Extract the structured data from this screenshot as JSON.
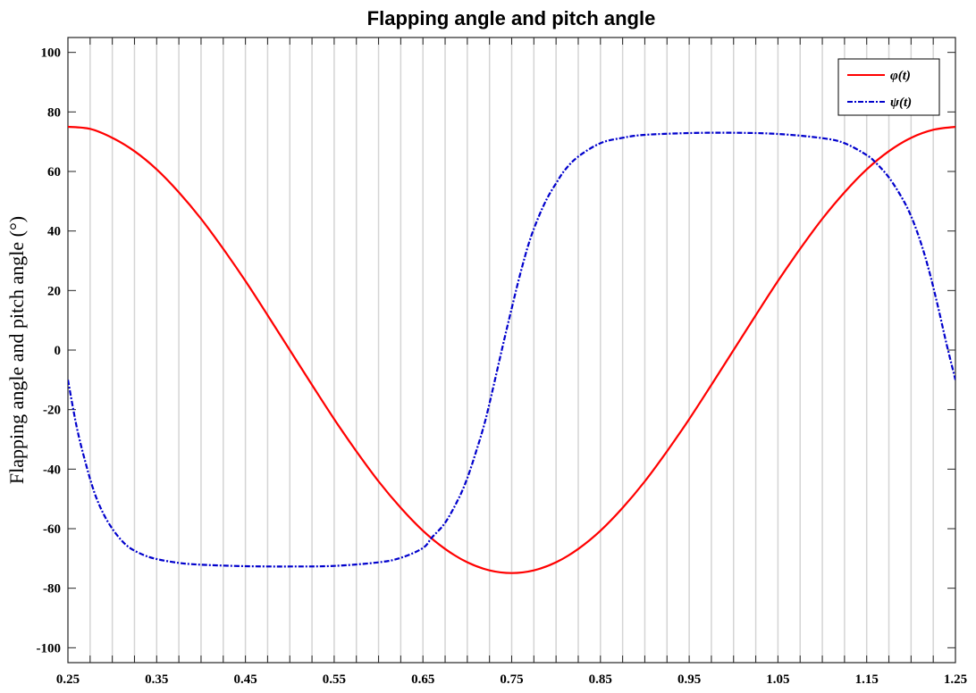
{
  "chart_data": {
    "type": "line",
    "title": "Flapping angle and pitch angle",
    "xlabel": "",
    "ylabel": "Flapping angle and pitch angle (°)",
    "xlim": [
      0.25,
      1.25
    ],
    "ylim": [
      -105,
      105
    ],
    "x_ticks": [
      0.25,
      0.35,
      0.45,
      0.55,
      0.65,
      0.75,
      0.85,
      0.95,
      1.05,
      1.15,
      1.25
    ],
    "x_tick_labels": [
      "0.25",
      "0.35",
      "0.45",
      "0.55",
      "0.65",
      "0.75",
      "0.85",
      "0.95",
      "1.05",
      "1.15",
      "1.25"
    ],
    "y_ticks": [
      -100,
      -80,
      -60,
      -40,
      -20,
      0,
      20,
      40,
      60,
      80,
      100
    ],
    "y_tick_labels": [
      "-100",
      "-80",
      "-60",
      "-40",
      "-20",
      "0",
      "20",
      "40",
      "60",
      "80",
      "100"
    ],
    "grid": "vertical",
    "legend_position": "top-right",
    "series": [
      {
        "name": "φ(t)",
        "color": "#ff0000",
        "style": "solid",
        "x": [
          0.25,
          0.275,
          0.3,
          0.325,
          0.35,
          0.375,
          0.4,
          0.425,
          0.45,
          0.475,
          0.5,
          0.525,
          0.55,
          0.575,
          0.6,
          0.625,
          0.65,
          0.675,
          0.7,
          0.725,
          0.75,
          0.775,
          0.8,
          0.825,
          0.85,
          0.875,
          0.9,
          0.925,
          0.95,
          0.975,
          1.0,
          1.025,
          1.05,
          1.075,
          1.1,
          1.125,
          1.15,
          1.175,
          1.2,
          1.225,
          1.25
        ],
        "values": [
          75.0,
          74.3,
          71.3,
          66.8,
          60.7,
          53.0,
          44.1,
          34.0,
          23.2,
          11.7,
          0.0,
          -11.7,
          -23.2,
          -34.0,
          -44.1,
          -53.0,
          -60.7,
          -66.8,
          -71.3,
          -74.0,
          -74.9,
          -74.0,
          -71.3,
          -66.8,
          -60.7,
          -53.0,
          -44.1,
          -34.0,
          -23.2,
          -11.7,
          0.0,
          11.7,
          23.2,
          34.0,
          44.1,
          53.0,
          60.7,
          66.8,
          71.3,
          74.0,
          75.0
        ]
      },
      {
        "name": "ψ(t)",
        "color": "#0000cc",
        "style": "dashdot",
        "x": [
          0.25,
          0.26,
          0.27,
          0.28,
          0.29,
          0.3,
          0.31,
          0.32,
          0.335,
          0.35,
          0.375,
          0.4,
          0.45,
          0.5,
          0.55,
          0.6,
          0.625,
          0.65,
          0.66,
          0.675,
          0.69,
          0.7,
          0.71,
          0.72,
          0.73,
          0.74,
          0.75,
          0.76,
          0.77,
          0.78,
          0.79,
          0.8,
          0.81,
          0.825,
          0.85,
          0.875,
          0.9,
          0.95,
          1.0,
          1.05,
          1.1,
          1.125,
          1.15,
          1.16,
          1.175,
          1.19,
          1.2,
          1.21,
          1.22,
          1.23,
          1.24,
          1.25
        ],
        "values": [
          -10.0,
          -26.0,
          -38.0,
          -48.0,
          -55.0,
          -60.0,
          -63.8,
          -66.5,
          -68.8,
          -70.2,
          -71.5,
          -72.1,
          -72.6,
          -72.7,
          -72.5,
          -71.3,
          -69.8,
          -66.5,
          -63.0,
          -58.0,
          -50.0,
          -43.0,
          -34.0,
          -24.0,
          -11.5,
          1.5,
          14.0,
          26.0,
          36.5,
          44.5,
          51.0,
          56.0,
          60.5,
          65.0,
          69.5,
          71.3,
          72.3,
          72.9,
          73.0,
          72.6,
          71.2,
          69.5,
          65.5,
          63.0,
          58.0,
          51.0,
          45.0,
          37.0,
          27.0,
          15.0,
          2.0,
          -10.0
        ]
      }
    ]
  }
}
